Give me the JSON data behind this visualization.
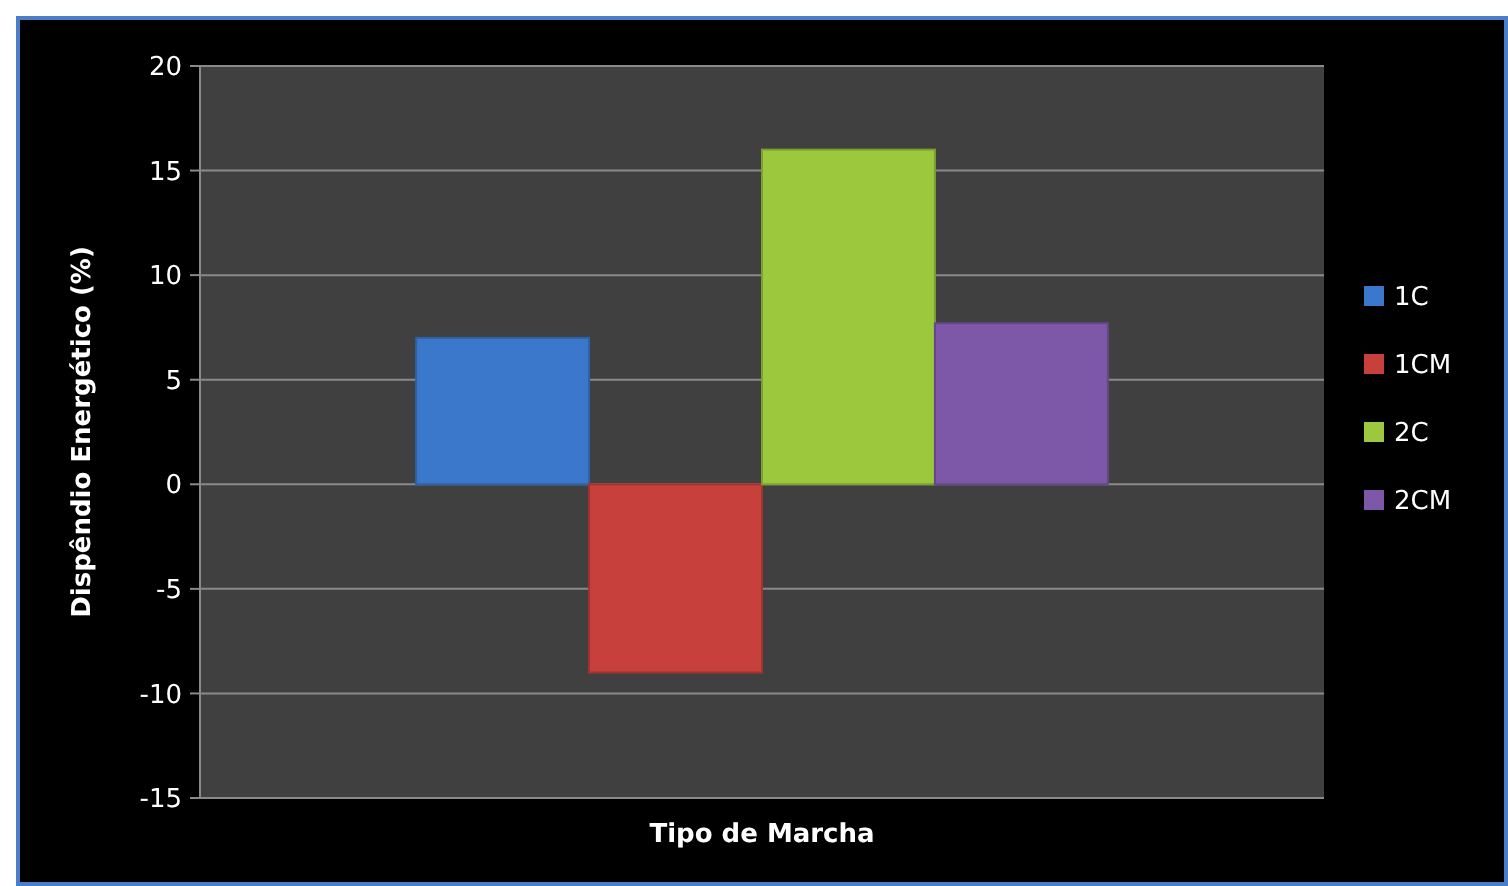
{
  "chart_data": {
    "type": "bar",
    "xlabel": "Tipo de Marcha",
    "ylabel": "Dispêndio Energético (%)",
    "categories": [
      null
    ],
    "series": [
      {
        "name": "1C",
        "color": "#3b78cc",
        "values": [
          7
        ]
      },
      {
        "name": "1CM",
        "color": "#c8403c",
        "values": [
          -9
        ]
      },
      {
        "name": "2C",
        "color": "#9cc83e",
        "values": [
          16
        ]
      },
      {
        "name": "2CM",
        "color": "#7e58a8",
        "values": [
          7.7
        ]
      }
    ],
    "ylim": [
      -15,
      20
    ],
    "yticks": [
      -15,
      -10,
      -5,
      0,
      5,
      10,
      15,
      20
    ],
    "grid": "y",
    "legend": "right"
  }
}
